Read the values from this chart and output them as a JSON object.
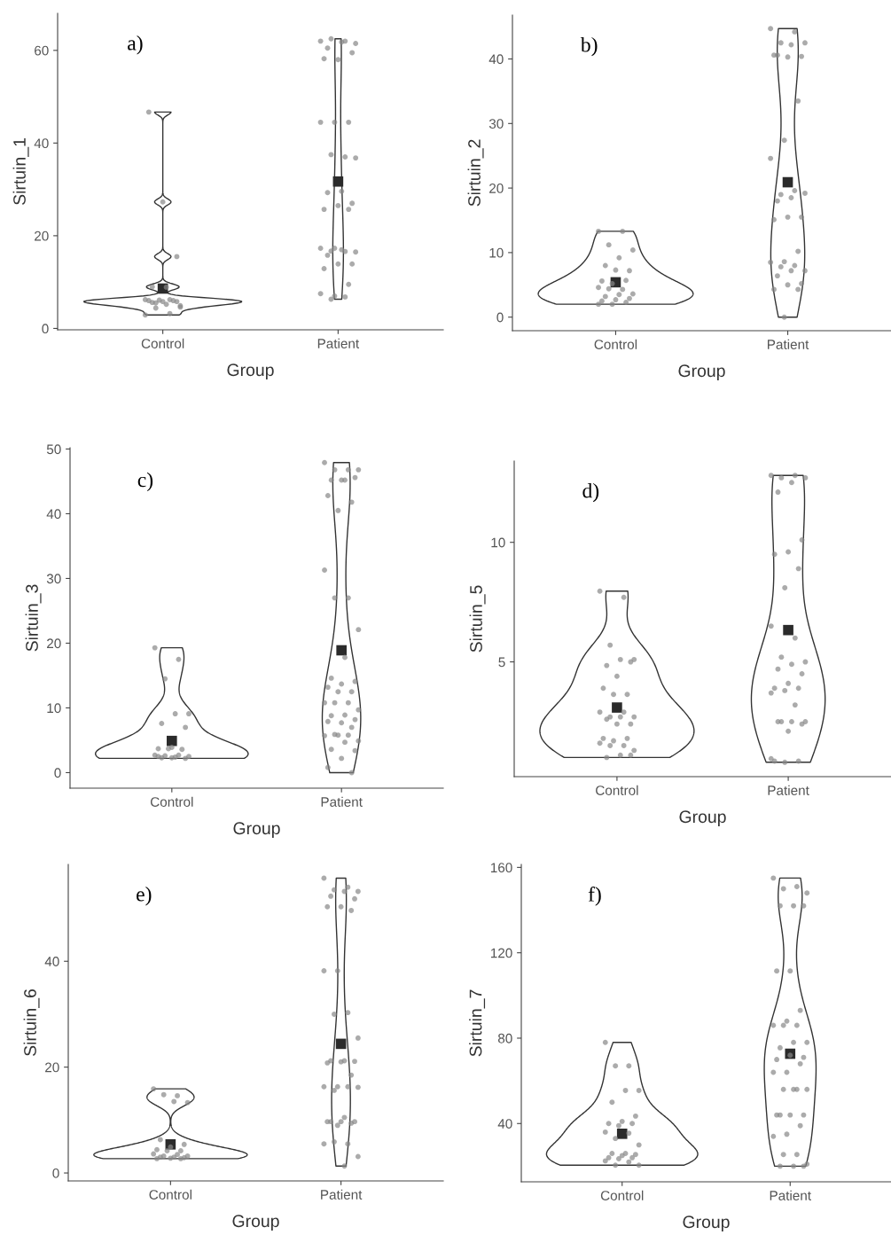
{
  "chart_data": [
    {
      "type": "scatter",
      "xlabel": "Group",
      "ylabel": "Sirtuin_1",
      "annotations": [
        "a)"
      ],
      "categories": [
        "Control",
        "Patient"
      ],
      "ylim": [
        -0.3,
        68
      ],
      "yticks": [
        0,
        20,
        40,
        60
      ],
      "series": [
        {
          "type": "scatter",
          "marker": "circle",
          "color": "#888888",
          "x": [
            "Control",
            "Control",
            "Control",
            "Control",
            "Control",
            "Control",
            "Control",
            "Control",
            "Control",
            "Control",
            "Control",
            "Control",
            "Control",
            "Control",
            "Control",
            "Control",
            "Control",
            "Control",
            "Control",
            "Control"
          ],
          "values": [
            2.9,
            3.2,
            4.4,
            4.6,
            5.2,
            5.6,
            5.8,
            5.8,
            6,
            6,
            6.1,
            6.2,
            6.2,
            5.5,
            4.9,
            8.9,
            9,
            15.5,
            27.3,
            46.7
          ]
        },
        {
          "type": "scatter",
          "marker": "circle",
          "color": "#888888",
          "x": [
            "Patient",
            "Patient",
            "Patient",
            "Patient",
            "Patient",
            "Patient",
            "Patient",
            "Patient",
            "Patient",
            "Patient",
            "Patient",
            "Patient",
            "Patient",
            "Patient",
            "Patient",
            "Patient",
            "Patient",
            "Patient",
            "Patient",
            "Patient",
            "Patient",
            "Patient",
            "Patient",
            "Patient",
            "Patient",
            "Patient",
            "Patient",
            "Patient",
            "Patient",
            "Patient",
            "Patient",
            "Patient",
            "Patient",
            "Patient",
            "Patient",
            "Patient"
          ],
          "values": [
            62,
            62,
            62.5,
            61.5,
            61.8,
            60.5,
            59.5,
            58,
            58.2,
            44.5,
            44.5,
            44.5,
            37,
            37.5,
            36.8,
            29.6,
            29.3,
            27,
            26.5,
            25.7,
            25.7,
            17.3,
            17.3,
            16.6,
            16.7,
            16.5,
            17,
            15.8,
            13.9,
            13.9,
            12.9,
            9.5,
            7,
            7.5,
            6.8,
            6.3
          ]
        },
        {
          "type": "scatter",
          "marker": "square",
          "color": "#2b2b2b",
          "x": [
            "Control",
            "Patient"
          ],
          "values": [
            8.6,
            31.7
          ]
        }
      ]
    },
    {
      "type": "scatter",
      "xlabel": "Group",
      "ylabel": "Sirtuin_2",
      "annotations": [
        "b)"
      ],
      "categories": [
        "Control",
        "Patient"
      ],
      "ylim": [
        -2.1,
        46.8
      ],
      "yticks": [
        0,
        10,
        20,
        30,
        40
      ],
      "series": [
        {
          "type": "scatter",
          "marker": "circle",
          "color": "#888888",
          "x": [
            "Control",
            "Control",
            "Control",
            "Control",
            "Control",
            "Control",
            "Control",
            "Control",
            "Control",
            "Control",
            "Control",
            "Control",
            "Control",
            "Control",
            "Control",
            "Control",
            "Control",
            "Control",
            "Control",
            "Control",
            "Control",
            "Control",
            "Control"
          ],
          "values": [
            13.3,
            13.3,
            11.2,
            10.4,
            9.2,
            8,
            7.2,
            7.3,
            5.6,
            5.7,
            5.2,
            4.6,
            4.3,
            4.4,
            3.6,
            3.5,
            3.2,
            2.9,
            2.7,
            2.5,
            2.3,
            2,
            2
          ]
        },
        {
          "type": "scatter",
          "marker": "circle",
          "color": "#888888",
          "x": [
            "Patient",
            "Patient",
            "Patient",
            "Patient",
            "Patient",
            "Patient",
            "Patient",
            "Patient",
            "Patient",
            "Patient",
            "Patient",
            "Patient",
            "Patient",
            "Patient",
            "Patient",
            "Patient",
            "Patient",
            "Patient",
            "Patient",
            "Patient",
            "Patient",
            "Patient",
            "Patient",
            "Patient",
            "Patient",
            "Patient",
            "Patient",
            "Patient",
            "Patient",
            "Patient",
            "Patient",
            "Patient",
            "Patient"
          ],
          "values": [
            44.7,
            44.2,
            42.5,
            42.5,
            42.2,
            40.6,
            40.4,
            40.3,
            40.6,
            33.5,
            27.4,
            24.6,
            19.6,
            19,
            19.2,
            18.5,
            18,
            15.5,
            15.5,
            15.1,
            10.2,
            8.6,
            8.5,
            8,
            7.8,
            7.2,
            7.2,
            6.4,
            5.2,
            5,
            4.3,
            4.3,
            0
          ]
        },
        {
          "type": "scatter",
          "marker": "square",
          "color": "#2b2b2b",
          "x": [
            "Control",
            "Patient"
          ],
          "values": [
            5.4,
            20.9
          ]
        }
      ]
    },
    {
      "type": "scatter",
      "xlabel": "Group",
      "ylabel": "Sirtuin_3",
      "annotations": [
        "c)"
      ],
      "categories": [
        "Control",
        "Patient"
      ],
      "ylim": [
        -2.4,
        50.2
      ],
      "yticks": [
        0,
        10,
        20,
        30,
        40,
        50
      ],
      "series": [
        {
          "type": "scatter",
          "marker": "circle",
          "color": "#888888",
          "x": [
            "Control",
            "Control",
            "Control",
            "Control",
            "Control",
            "Control",
            "Control",
            "Control",
            "Control",
            "Control",
            "Control",
            "Control",
            "Control",
            "Control",
            "Control",
            "Control",
            "Control",
            "Control",
            "Control",
            "Control"
          ],
          "values": [
            19.3,
            17.5,
            14.5,
            9.1,
            9.1,
            7.6,
            7,
            3.9,
            3.7,
            3.6,
            3.7,
            2.7,
            2.7,
            2.6,
            2.5,
            2.4,
            2.3,
            2.2,
            2.3,
            2.5
          ]
        },
        {
          "type": "scatter",
          "marker": "circle",
          "color": "#888888",
          "x": [
            "Patient",
            "Patient",
            "Patient",
            "Patient",
            "Patient",
            "Patient",
            "Patient",
            "Patient",
            "Patient",
            "Patient",
            "Patient",
            "Patient",
            "Patient",
            "Patient",
            "Patient",
            "Patient",
            "Patient",
            "Patient",
            "Patient",
            "Patient",
            "Patient",
            "Patient",
            "Patient",
            "Patient",
            "Patient",
            "Patient",
            "Patient",
            "Patient",
            "Patient",
            "Patient",
            "Patient",
            "Patient",
            "Patient",
            "Patient",
            "Patient",
            "Patient",
            "Patient",
            "Patient",
            "Patient",
            "Patient",
            "Patient",
            "Patient",
            "Patient"
          ],
          "values": [
            47.9,
            46.8,
            46.8,
            46.8,
            45.2,
            45.2,
            45.6,
            45.2,
            42.8,
            41.8,
            40.5,
            31.3,
            27,
            27,
            22.1,
            17.8,
            14.6,
            14.1,
            13.7,
            13.2,
            12.5,
            12.5,
            10.8,
            10.8,
            10.8,
            9.7,
            8.9,
            8.8,
            8.2,
            7.7,
            7.9,
            7,
            5.8,
            5.7,
            5.8,
            5.9,
            4.9,
            4.7,
            3.6,
            3.4,
            2.2,
            0.8,
            0
          ]
        },
        {
          "type": "scatter",
          "marker": "square",
          "color": "#2b2b2b",
          "x": [
            "Control",
            "Patient"
          ],
          "values": [
            4.9,
            18.9
          ]
        }
      ]
    },
    {
      "type": "scatter",
      "xlabel": "Group",
      "ylabel": "Sirtuin_5",
      "annotations": [
        "d)"
      ],
      "categories": [
        "Control",
        "Patient"
      ],
      "ylim": [
        0.2,
        13.4
      ],
      "yticks": [
        5,
        10
      ],
      "series": [
        {
          "type": "scatter",
          "marker": "circle",
          "color": "#888888",
          "x": [
            "Control",
            "Control",
            "Control",
            "Control",
            "Control",
            "Control",
            "Control",
            "Control",
            "Control",
            "Control",
            "Control",
            "Control",
            "Control",
            "Control",
            "Control",
            "Control",
            "Control",
            "Control",
            "Control",
            "Control",
            "Control",
            "Control",
            "Control",
            "Control",
            "Control",
            "Control",
            "Control",
            "Control",
            "Control"
          ],
          "values": [
            7.96,
            7.7,
            5.7,
            5.1,
            5.1,
            4.85,
            5,
            4.4,
            3.9,
            3.64,
            3.64,
            2.9,
            2.9,
            2.7,
            2.7,
            2.7,
            2.6,
            2.4,
            2.4,
            1.8,
            1.8,
            1.7,
            1.6,
            1.5,
            1.5,
            1.3,
            1.1,
            1.0,
            1.1
          ]
        },
        {
          "type": "scatter",
          "marker": "circle",
          "color": "#888888",
          "x": [
            "Patient",
            "Patient",
            "Patient",
            "Patient",
            "Patient",
            "Patient",
            "Patient",
            "Patient",
            "Patient",
            "Patient",
            "Patient",
            "Patient",
            "Patient",
            "Patient",
            "Patient",
            "Patient",
            "Patient",
            "Patient",
            "Patient",
            "Patient",
            "Patient",
            "Patient",
            "Patient",
            "Patient",
            "Patient",
            "Patient",
            "Patient",
            "Patient",
            "Patient",
            "Patient",
            "Patient",
            "Patient",
            "Patient",
            "Patient"
          ],
          "values": [
            12.8,
            12.8,
            12.7,
            12.7,
            12.5,
            12.1,
            10.1,
            9.6,
            9.5,
            8.9,
            8.1,
            6.5,
            6.0,
            5.2,
            5.0,
            4.9,
            4.7,
            4.5,
            4.1,
            3.9,
            3.9,
            3.8,
            3.7,
            3.2,
            2.5,
            2.5,
            2.5,
            2.5,
            2.4,
            2.1,
            0.85,
            0.85,
            0.8,
            0.95
          ]
        },
        {
          "type": "scatter",
          "marker": "square",
          "color": "#2b2b2b",
          "x": [
            "Control",
            "Patient"
          ],
          "values": [
            3.09,
            6.33
          ]
        }
      ]
    },
    {
      "type": "scatter",
      "xlabel": "Group",
      "ylabel": "Sirtuin_6",
      "annotations": [
        "e)"
      ],
      "categories": [
        "Control",
        "Patient"
      ],
      "ylim": [
        -1.5,
        58.3
      ],
      "yticks": [
        0,
        20,
        40
      ],
      "series": [
        {
          "type": "scatter",
          "marker": "circle",
          "color": "#888888",
          "x": [
            "Control",
            "Control",
            "Control",
            "Control",
            "Control",
            "Control",
            "Control",
            "Control",
            "Control",
            "Control",
            "Control",
            "Control",
            "Control",
            "Control",
            "Control",
            "Control",
            "Control",
            "Control",
            "Control",
            "Control",
            "Control"
          ],
          "values": [
            15.9,
            14.6,
            14.8,
            13.3,
            13.5,
            6.3,
            5.4,
            4.9,
            4.4,
            4.2,
            4.2,
            3.6,
            3.5,
            3.2,
            3.2,
            3,
            3,
            2.9,
            2.8,
            2.7,
            2.7
          ]
        },
        {
          "type": "scatter",
          "marker": "circle",
          "color": "#888888",
          "x": [
            "Patient",
            "Patient",
            "Patient",
            "Patient",
            "Patient",
            "Patient",
            "Patient",
            "Patient",
            "Patient",
            "Patient",
            "Patient",
            "Patient",
            "Patient",
            "Patient",
            "Patient",
            "Patient",
            "Patient",
            "Patient",
            "Patient",
            "Patient",
            "Patient",
            "Patient",
            "Patient",
            "Patient",
            "Patient",
            "Patient",
            "Patient",
            "Patient",
            "Patient",
            "Patient",
            "Patient",
            "Patient",
            "Patient",
            "Patient",
            "Patient",
            "Patient",
            "Patient",
            "Patient"
          ],
          "values": [
            55.7,
            54,
            53.5,
            53.2,
            53.2,
            52.3,
            51.8,
            50.3,
            50.3,
            49.6,
            38.2,
            38.2,
            30.3,
            30,
            25.5,
            21.2,
            21.2,
            21.1,
            21,
            20.8,
            18.5,
            16.3,
            16.3,
            16.3,
            15.6,
            16.2,
            10.5,
            9.7,
            9.7,
            9.7,
            9.7,
            9.4,
            9,
            5.5,
            5.5,
            5.9,
            3.1,
            1.3
          ]
        },
        {
          "type": "scatter",
          "marker": "square",
          "color": "#2b2b2b",
          "x": [
            "Control",
            "Patient"
          ],
          "values": [
            5.4,
            24.4
          ]
        }
      ]
    },
    {
      "type": "scatter",
      "xlabel": "Group",
      "ylabel": "Sirtuin_7",
      "annotations": [
        "f)"
      ],
      "categories": [
        "Control",
        "Patient"
      ],
      "ylim": [
        12.7,
        161.4
      ],
      "yticks": [
        40,
        80,
        120,
        160
      ],
      "series": [
        {
          "type": "scatter",
          "marker": "circle",
          "color": "#888888",
          "x": [
            "Control",
            "Control",
            "Control",
            "Control",
            "Control",
            "Control",
            "Control",
            "Control",
            "Control",
            "Control",
            "Control",
            "Control",
            "Control",
            "Control",
            "Control",
            "Control",
            "Control",
            "Control",
            "Control",
            "Control",
            "Control",
            "Control",
            "Control",
            "Control",
            "Control",
            "Control"
          ],
          "values": [
            78,
            67,
            67,
            55.5,
            55.5,
            50,
            43.5,
            41,
            40,
            40,
            39,
            36,
            35.5,
            33,
            30,
            26,
            26,
            25.5,
            25,
            24,
            24,
            23.5,
            22.5,
            22,
            20.5,
            20.5
          ]
        },
        {
          "type": "scatter",
          "marker": "circle",
          "color": "#888888",
          "x": [
            "Patient",
            "Patient",
            "Patient",
            "Patient",
            "Patient",
            "Patient",
            "Patient",
            "Patient",
            "Patient",
            "Patient",
            "Patient",
            "Patient",
            "Patient",
            "Patient",
            "Patient",
            "Patient",
            "Patient",
            "Patient",
            "Patient",
            "Patient",
            "Patient",
            "Patient",
            "Patient",
            "Patient",
            "Patient",
            "Patient",
            "Patient",
            "Patient",
            "Patient",
            "Patient",
            "Patient",
            "Patient",
            "Patient",
            "Patient",
            "Patient",
            "Patient",
            "Patient",
            "Patient",
            "Patient",
            "Patient"
          ],
          "values": [
            155,
            151,
            150,
            148,
            142,
            142,
            142,
            111.5,
            111.5,
            93,
            88,
            86,
            86,
            86,
            78,
            78,
            75.5,
            71,
            72,
            70,
            68,
            64,
            64,
            56,
            56,
            56,
            56,
            44,
            44,
            44,
            44,
            39,
            35,
            34,
            25.5,
            25.5,
            21,
            20,
            20,
            20
          ]
        },
        {
          "type": "scatter",
          "marker": "square",
          "color": "#2b2b2b",
          "x": [
            "Control",
            "Patient"
          ],
          "values": [
            35.2,
            72.7
          ]
        }
      ]
    }
  ]
}
